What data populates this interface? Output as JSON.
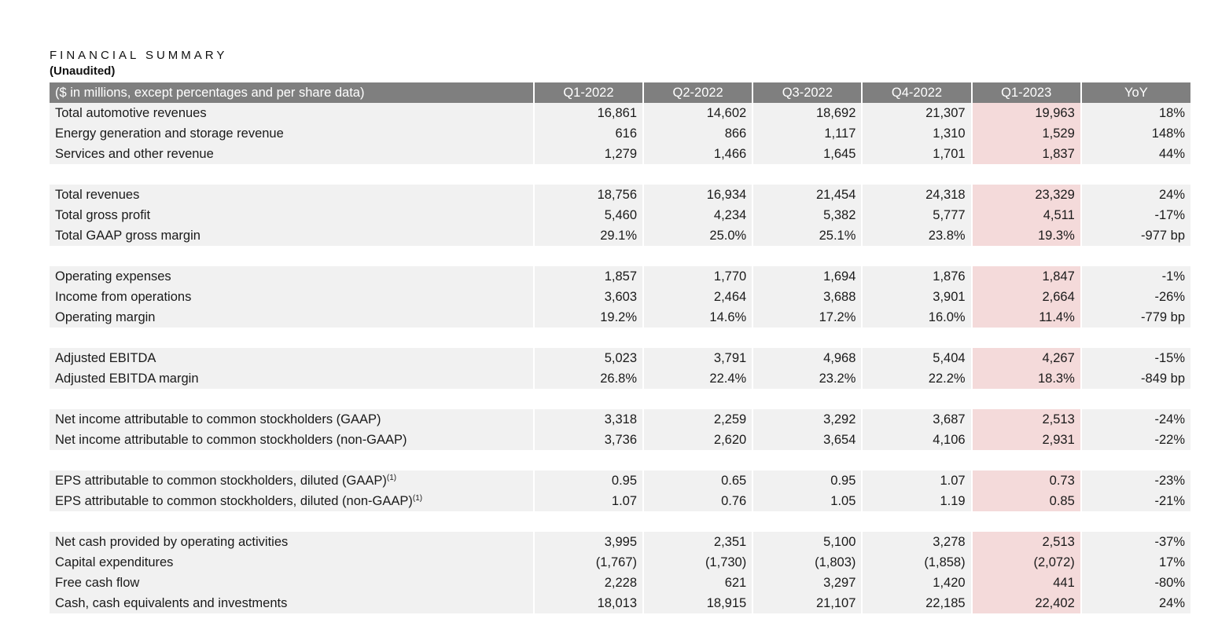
{
  "header": {
    "title": "FINANCIAL SUMMARY",
    "subtitle": "(Unaudited)"
  },
  "table": {
    "columns": [
      "($ in millions, except percentages and per share data)",
      "Q1-2022",
      "Q2-2022",
      "Q3-2022",
      "Q4-2022",
      "Q1-2023",
      "YoY"
    ],
    "groups": [
      [
        {
          "label": "Total automotive revenues",
          "sup": "",
          "values": [
            "16,861",
            "14,602",
            "18,692",
            "21,307",
            "19,963",
            "18%"
          ]
        },
        {
          "label": "Energy generation and storage revenue",
          "sup": "",
          "values": [
            "616",
            "866",
            "1,117",
            "1,310",
            "1,529",
            "148%"
          ]
        },
        {
          "label": "Services and other revenue",
          "sup": "",
          "values": [
            "1,279",
            "1,466",
            "1,645",
            "1,701",
            "1,837",
            "44%"
          ]
        }
      ],
      [
        {
          "label": "Total revenues",
          "sup": "",
          "values": [
            "18,756",
            "16,934",
            "21,454",
            "24,318",
            "23,329",
            "24%"
          ]
        },
        {
          "label": "Total gross profit",
          "sup": "",
          "values": [
            "5,460",
            "4,234",
            "5,382",
            "5,777",
            "4,511",
            "-17%"
          ]
        },
        {
          "label": "Total GAAP gross margin",
          "sup": "",
          "values": [
            "29.1%",
            "25.0%",
            "25.1%",
            "23.8%",
            "19.3%",
            "-977 bp"
          ]
        }
      ],
      [
        {
          "label": "Operating expenses",
          "sup": "",
          "values": [
            "1,857",
            "1,770",
            "1,694",
            "1,876",
            "1,847",
            "-1%"
          ]
        },
        {
          "label": "Income from operations",
          "sup": "",
          "values": [
            "3,603",
            "2,464",
            "3,688",
            "3,901",
            "2,664",
            "-26%"
          ]
        },
        {
          "label": "Operating margin",
          "sup": "",
          "values": [
            "19.2%",
            "14.6%",
            "17.2%",
            "16.0%",
            "11.4%",
            "-779 bp"
          ]
        }
      ],
      [
        {
          "label": "Adjusted EBITDA",
          "sup": "",
          "values": [
            "5,023",
            "3,791",
            "4,968",
            "5,404",
            "4,267",
            "-15%"
          ]
        },
        {
          "label": "Adjusted EBITDA margin",
          "sup": "",
          "values": [
            "26.8%",
            "22.4%",
            "23.2%",
            "22.2%",
            "18.3%",
            "-849 bp"
          ]
        }
      ],
      [
        {
          "label": "Net income attributable to common stockholders (GAAP)",
          "sup": "",
          "values": [
            "3,318",
            "2,259",
            "3,292",
            "3,687",
            "2,513",
            "-24%"
          ]
        },
        {
          "label": "Net income attributable to common stockholders (non-GAAP)",
          "sup": "",
          "values": [
            "3,736",
            "2,620",
            "3,654",
            "4,106",
            "2,931",
            "-22%"
          ]
        }
      ],
      [
        {
          "label": "EPS attributable to common stockholders, diluted (GAAP)",
          "sup": "(1)",
          "values": [
            "0.95",
            "0.65",
            "0.95",
            "1.07",
            "0.73",
            "-23%"
          ]
        },
        {
          "label": "EPS attributable to common stockholders, diluted (non-GAAP)",
          "sup": "(1)",
          "values": [
            "1.07",
            "0.76",
            "1.05",
            "1.19",
            "0.85",
            "-21%"
          ]
        }
      ],
      [
        {
          "label": "Net cash provided by operating activities",
          "sup": "",
          "values": [
            "3,995",
            "2,351",
            "5,100",
            "3,278",
            "2,513",
            "-37%"
          ]
        },
        {
          "label": "Capital expenditures",
          "sup": "",
          "values": [
            "(1,767)",
            "(1,730)",
            "(1,803)",
            "(1,858)",
            "(2,072)",
            "17%"
          ]
        },
        {
          "label": "Free cash flow",
          "sup": "",
          "values": [
            "2,228",
            "621",
            "3,297",
            "1,420",
            "441",
            "-80%"
          ]
        },
        {
          "label": "Cash, cash equivalents and investments",
          "sup": "",
          "values": [
            "18,013",
            "18,915",
            "21,107",
            "22,185",
            "22,402",
            "24%"
          ]
        }
      ]
    ],
    "highlight_column_index": 4,
    "highlight_color": "#f4dada",
    "header_color": "#7f7f7f"
  }
}
